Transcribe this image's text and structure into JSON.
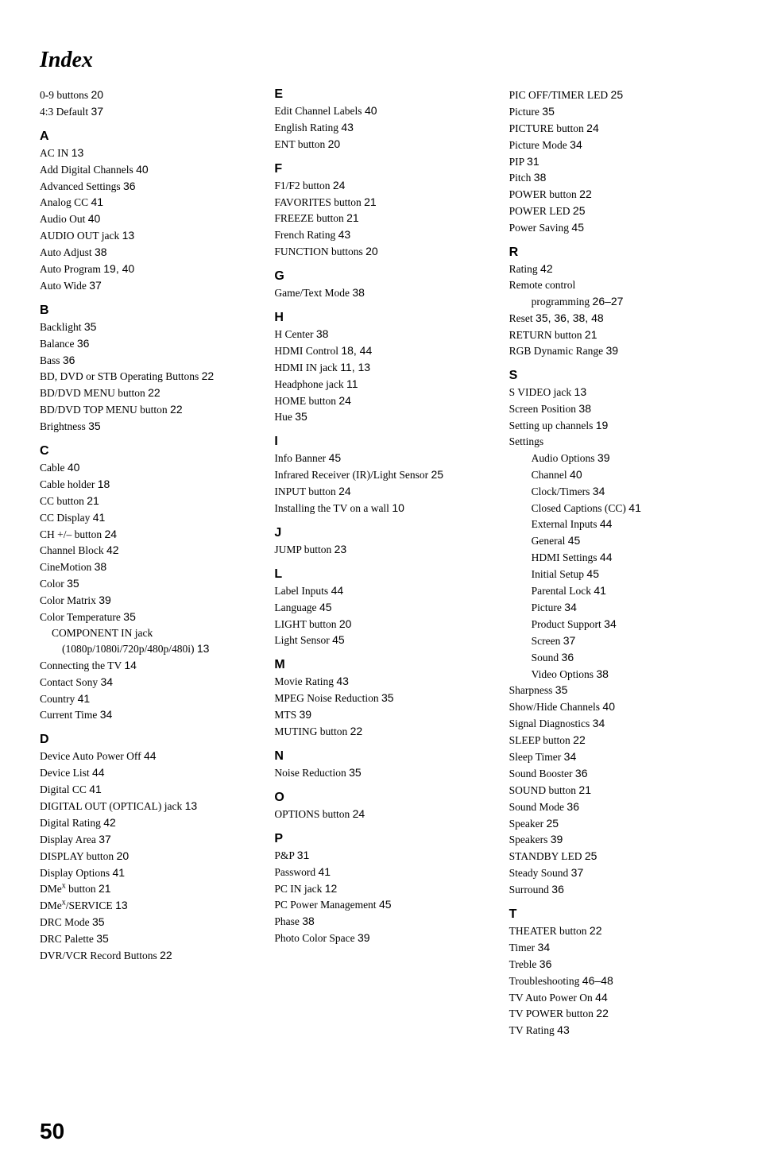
{
  "title": "Index",
  "page_number": "50",
  "columns": [
    {
      "top_entries": [
        {
          "text": "0-9 buttons ",
          "page": "20"
        },
        {
          "text": "4:3 Default ",
          "page": "37"
        }
      ],
      "sections": [
        {
          "letter": "A",
          "entries": [
            {
              "text": "AC IN ",
              "page": "13"
            },
            {
              "text": "Add Digital Channels ",
              "page": "40"
            },
            {
              "text": "Advanced Settings ",
              "page": "36"
            },
            {
              "text": "Analog CC ",
              "page": "41"
            },
            {
              "text": "Audio Out ",
              "page": "40"
            },
            {
              "text": "AUDIO OUT jack ",
              "page": "13"
            },
            {
              "text": "Auto Adjust ",
              "page": "38"
            },
            {
              "text": "Auto Program ",
              "page": "19, 40"
            },
            {
              "text": "Auto Wide ",
              "page": "37"
            }
          ]
        },
        {
          "letter": "B",
          "entries": [
            {
              "text": "Backlight ",
              "page": "35"
            },
            {
              "text": "Balance ",
              "page": "36"
            },
            {
              "text": "Bass ",
              "page": "36"
            },
            {
              "text": "BD, DVD or STB Operating Buttons ",
              "page": "22"
            },
            {
              "text": "BD/DVD MENU button ",
              "page": "22"
            },
            {
              "text": "BD/DVD TOP MENU button ",
              "page": "22"
            },
            {
              "text": "Brightness ",
              "page": "35"
            }
          ]
        },
        {
          "letter": "C",
          "entries": [
            {
              "text": "Cable ",
              "page": "40"
            },
            {
              "text": "Cable holder ",
              "page": "18"
            },
            {
              "text": "CC button ",
              "page": "21"
            },
            {
              "text": "CC Display ",
              "page": "41"
            },
            {
              "text": "CH +/– button ",
              "page": "24"
            },
            {
              "text": "Channel Block ",
              "page": "42"
            },
            {
              "text": "CineMotion ",
              "page": "38"
            },
            {
              "text": "Color ",
              "page": "35"
            },
            {
              "text": "Color Matrix ",
              "page": "39"
            },
            {
              "text": "Color Temperature ",
              "page": "35"
            },
            {
              "text": "COMPONENT IN jack (1080p/1080i/720p/480p/480i) ",
              "page": "13",
              "hang": true
            },
            {
              "text": "Connecting the TV ",
              "page": "14"
            },
            {
              "text": "Contact Sony ",
              "page": "34"
            },
            {
              "text": "Country ",
              "page": "41"
            },
            {
              "text": "Current Time ",
              "page": "34"
            }
          ]
        },
        {
          "letter": "D",
          "entries": [
            {
              "text": "Device Auto Power Off ",
              "page": "44"
            },
            {
              "text": "Device List ",
              "page": "44"
            },
            {
              "text": "Digital CC ",
              "page": "41"
            },
            {
              "text": "DIGITAL OUT (OPTICAL) jack ",
              "page": "13"
            },
            {
              "text": "Digital Rating ",
              "page": "42"
            },
            {
              "text": "Display Area ",
              "page": "37"
            },
            {
              "text": "DISPLAY button ",
              "page": "20"
            },
            {
              "text": "Display Options ",
              "page": "41"
            },
            {
              "text_html": "DMe<sup>x</sup> button ",
              "page": "21"
            },
            {
              "text_html": "DMe<sup>x</sup>/SERVICE ",
              "page": "13"
            },
            {
              "text": "DRC Mode ",
              "page": "35"
            },
            {
              "text": "DRC Palette ",
              "page": "35"
            },
            {
              "text": "DVR/VCR Record Buttons ",
              "page": "22"
            }
          ]
        }
      ]
    },
    {
      "sections": [
        {
          "letter": "E",
          "first": true,
          "entries": [
            {
              "text": "Edit Channel Labels ",
              "page": "40"
            },
            {
              "text": "English Rating ",
              "page": "43"
            },
            {
              "text": "ENT button ",
              "page": "20"
            }
          ]
        },
        {
          "letter": "F",
          "entries": [
            {
              "text": "F1/F2 button ",
              "page": "24"
            },
            {
              "text": "FAVORITES button ",
              "page": "21"
            },
            {
              "text": "FREEZE button ",
              "page": "21"
            },
            {
              "text": "French Rating ",
              "page": "43"
            },
            {
              "text": "FUNCTION buttons ",
              "page": "20"
            }
          ]
        },
        {
          "letter": "G",
          "entries": [
            {
              "text": "Game/Text Mode ",
              "page": "38"
            }
          ]
        },
        {
          "letter": "H",
          "entries": [
            {
              "text": "H Center ",
              "page": "38"
            },
            {
              "text": "HDMI Control ",
              "page": "18, 44"
            },
            {
              "text": "HDMI IN jack ",
              "page": "11, 13"
            },
            {
              "text": "Headphone jack ",
              "page": "11"
            },
            {
              "text": "HOME button ",
              "page": "24"
            },
            {
              "text": "Hue ",
              "page": "35"
            }
          ]
        },
        {
          "letter": "I",
          "entries": [
            {
              "text": "Info Banner ",
              "page": "45"
            },
            {
              "text": "Infrared Receiver (IR)/Light Sensor ",
              "page": "25"
            },
            {
              "text": "INPUT button ",
              "page": "24"
            },
            {
              "text": "Installing the TV on a wall ",
              "page": "10"
            }
          ]
        },
        {
          "letter": "J",
          "entries": [
            {
              "text": "JUMP button ",
              "page": "23"
            }
          ]
        },
        {
          "letter": "L",
          "entries": [
            {
              "text": "Label Inputs ",
              "page": "44"
            },
            {
              "text": "Language ",
              "page": "45"
            },
            {
              "text": "LIGHT button ",
              "page": "20"
            },
            {
              "text": "Light Sensor ",
              "page": "45"
            }
          ]
        },
        {
          "letter": "M",
          "entries": [
            {
              "text": "Movie Rating ",
              "page": "43"
            },
            {
              "text": "MPEG Noise Reduction ",
              "page": "35"
            },
            {
              "text": "MTS ",
              "page": "39"
            },
            {
              "text": "MUTING button ",
              "page": "22"
            }
          ]
        },
        {
          "letter": "N",
          "entries": [
            {
              "text": "Noise Reduction ",
              "page": "35"
            }
          ]
        },
        {
          "letter": "O",
          "entries": [
            {
              "text": "OPTIONS button ",
              "page": "24"
            }
          ]
        },
        {
          "letter": "P",
          "entries": [
            {
              "text": "P&P ",
              "page": "31"
            },
            {
              "text": "Password ",
              "page": "41"
            },
            {
              "text": "PC IN jack ",
              "page": "12"
            },
            {
              "text": "PC Power Management ",
              "page": "45"
            },
            {
              "text": "Phase ",
              "page": "38"
            },
            {
              "text": "Photo Color Space ",
              "page": "39"
            }
          ]
        }
      ]
    },
    {
      "top_entries": [
        {
          "text": "PIC OFF/TIMER LED ",
          "page": "25"
        },
        {
          "text": "Picture ",
          "page": "35"
        },
        {
          "text": "PICTURE button ",
          "page": "24"
        },
        {
          "text": "Picture Mode ",
          "page": "34"
        },
        {
          "text": "PIP ",
          "page": "31"
        },
        {
          "text": "Pitch ",
          "page": "38"
        },
        {
          "text": "POWER button ",
          "page": "22"
        },
        {
          "text": "POWER LED ",
          "page": "25"
        },
        {
          "text": "Power Saving ",
          "page": "45"
        }
      ],
      "sections": [
        {
          "letter": "R",
          "entries": [
            {
              "text": "Rating ",
              "page": "42"
            },
            {
              "text": "Remote control",
              "page": ""
            },
            {
              "text": "programming ",
              "page": "26–27",
              "indent": true
            },
            {
              "text": "Reset ",
              "page": "35, 36, 38, 48"
            },
            {
              "text": "RETURN button ",
              "page": "21"
            },
            {
              "text": "RGB Dynamic Range ",
              "page": "39"
            }
          ]
        },
        {
          "letter": "S",
          "entries": [
            {
              "text": "S VIDEO jack ",
              "page": "13"
            },
            {
              "text": "Screen Position ",
              "page": "38"
            },
            {
              "text": "Setting up channels ",
              "page": "19"
            },
            {
              "text": "Settings",
              "page": ""
            },
            {
              "text": "Audio Options ",
              "page": "39",
              "indent": true
            },
            {
              "text": "Channel ",
              "page": "40",
              "indent": true
            },
            {
              "text": "Clock/Timers ",
              "page": "34",
              "indent": true
            },
            {
              "text": "Closed Captions (CC) ",
              "page": "41",
              "indent": true
            },
            {
              "text": "External Inputs ",
              "page": "44",
              "indent": true
            },
            {
              "text": "General ",
              "page": "45",
              "indent": true
            },
            {
              "text": "HDMI Settings ",
              "page": "44",
              "indent": true
            },
            {
              "text": "Initial Setup ",
              "page": "45",
              "indent": true
            },
            {
              "text": "Parental Lock ",
              "page": "41",
              "indent": true
            },
            {
              "text": "Picture ",
              "page": "34",
              "indent": true
            },
            {
              "text": "Product Support ",
              "page": "34",
              "indent": true
            },
            {
              "text": "Screen ",
              "page": "37",
              "indent": true
            },
            {
              "text": "Sound ",
              "page": "36",
              "indent": true
            },
            {
              "text": "Video Options ",
              "page": "38",
              "indent": true
            },
            {
              "text": "Sharpness ",
              "page": "35"
            },
            {
              "text": "Show/Hide Channels ",
              "page": "40"
            },
            {
              "text": "Signal Diagnostics ",
              "page": "34"
            },
            {
              "text": "SLEEP button ",
              "page": "22"
            },
            {
              "text": "Sleep Timer ",
              "page": "34"
            },
            {
              "text": "Sound Booster ",
              "page": "36"
            },
            {
              "text": "SOUND button ",
              "page": "21"
            },
            {
              "text": "Sound Mode ",
              "page": "36"
            },
            {
              "text": "Speaker ",
              "page": "25"
            },
            {
              "text": "Speakers ",
              "page": "39"
            },
            {
              "text": "STANDBY LED ",
              "page": "25"
            },
            {
              "text": "Steady Sound ",
              "page": "37"
            },
            {
              "text": "Surround ",
              "page": "36"
            }
          ]
        },
        {
          "letter": "T",
          "entries": [
            {
              "text": "THEATER button ",
              "page": "22"
            },
            {
              "text": "Timer ",
              "page": "34"
            },
            {
              "text": "Treble ",
              "page": "36"
            },
            {
              "text": "Troubleshooting ",
              "page": "46–48"
            },
            {
              "text": "TV Auto Power On ",
              "page": "44"
            },
            {
              "text": "TV POWER button ",
              "page": "22"
            },
            {
              "text": "TV Rating ",
              "page": "43"
            }
          ]
        }
      ]
    }
  ]
}
